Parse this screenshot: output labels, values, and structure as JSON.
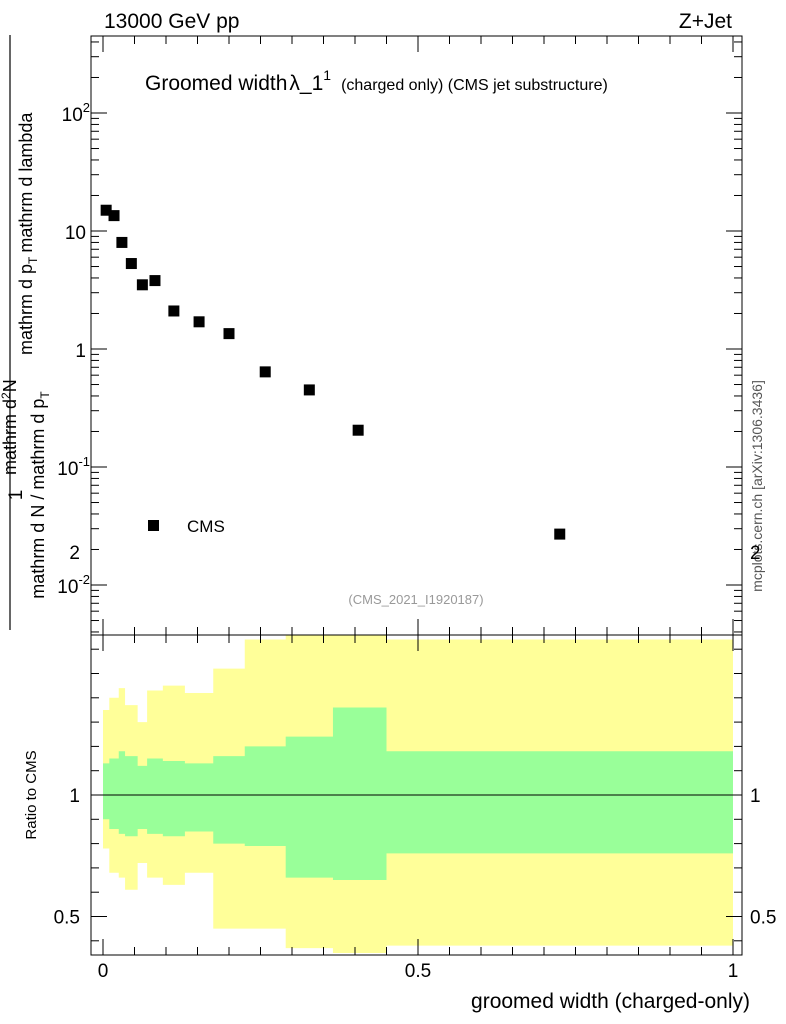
{
  "header": {
    "left": "13000 GeV pp",
    "right": "Z+Jet"
  },
  "side_label": "mcplots.cern.ch [arXiv:1306.3436]",
  "chart_data": [
    {
      "type": "scatter",
      "title_main": "Groomed width",
      "title_symbol": "λ_1",
      "title_sup": "1",
      "title_sub": "(charged only) (CMS jet substructure)",
      "ylabel_numerator": "1",
      "ylabel_denominator_top": "mathrm d N / mathrm d p",
      "ylabel_denominator_sub": "T",
      "ylabel_expression": "mathrm d",
      "ylabel_top": "mathrm d",
      "ylabel_top_sup": "2",
      "ylabel_top_rest": "N",
      "ylabel_bottom": "mathrm d p",
      "ylabel_bottom_sub": "T",
      "ylabel_bottom_rest": "mathrm d lambda",
      "yscale": "log",
      "ylim": [
        0.004,
        500
      ],
      "xlim": [
        -0.02,
        1.0
      ],
      "y_ticks": [
        {
          "value": 0.01,
          "base": "10",
          "exp": "-2"
        },
        {
          "value": 0.1,
          "base": "10",
          "exp": "-1"
        },
        {
          "value": 1,
          "base": "1",
          "exp": ""
        },
        {
          "value": 10,
          "base": "10",
          "exp": ""
        },
        {
          "value": 100,
          "base": "10",
          "exp": "2"
        }
      ],
      "series": [
        {
          "name": "CMS",
          "color": "#000000",
          "x": [
            0.005,
            0.0175,
            0.03,
            0.045,
            0.0625,
            0.0825,
            0.1125,
            0.1525,
            0.2,
            0.2575,
            0.3275,
            0.405,
            0.725
          ],
          "y": [
            15.0,
            13.5,
            8.0,
            5.3,
            3.5,
            3.8,
            2.1,
            1.7,
            1.35,
            0.64,
            0.45,
            0.205,
            0.027
          ]
        }
      ],
      "watermark": "(CMS_2021_I1920187)",
      "legend_position": "bottom-left"
    },
    {
      "type": "area",
      "ylabel": "Ratio to CMS",
      "xlabel": "groomed width (charged-only)",
      "xlim": [
        -0.02,
        1.0
      ],
      "ylim": [
        0.35,
        2.3
      ],
      "x_ticks": [
        "0",
        "0.5",
        "1"
      ],
      "y_ticks": [
        "0.5",
        "1",
        "2"
      ],
      "reference_line": 1,
      "bins": [
        0,
        0.01,
        0.025,
        0.035,
        0.055,
        0.07,
        0.095,
        0.13,
        0.175,
        0.225,
        0.29,
        0.365,
        0.45,
        1.0
      ],
      "inner_band": {
        "color": "#99ff99",
        "upper": [
          1.13,
          1.15,
          1.18,
          1.16,
          1.12,
          1.15,
          1.14,
          1.13,
          1.16,
          1.2,
          1.24,
          1.36,
          1.18
        ],
        "lower": [
          0.9,
          0.86,
          0.84,
          0.83,
          0.86,
          0.84,
          0.83,
          0.85,
          0.8,
          0.79,
          0.66,
          0.65,
          0.76
        ]
      },
      "outer_band": {
        "color": "#ffff99",
        "upper": [
          1.35,
          1.4,
          1.44,
          1.37,
          1.3,
          1.43,
          1.45,
          1.42,
          1.52,
          1.64,
          1.8,
          1.85,
          1.64
        ],
        "lower": [
          0.78,
          0.68,
          0.66,
          0.61,
          0.72,
          0.66,
          0.63,
          0.68,
          0.45,
          0.45,
          0.37,
          0.35,
          0.38
        ]
      }
    }
  ]
}
